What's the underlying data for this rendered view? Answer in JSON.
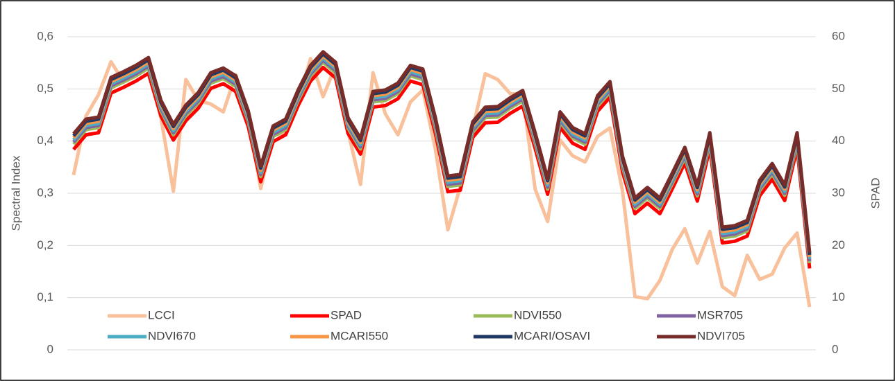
{
  "chart_data": {
    "type": "line",
    "y_label": "Spectral Index",
    "y2_label": "SPAD",
    "categories": [
      null,
      null,
      null,
      null,
      null,
      null,
      null,
      null,
      null,
      null,
      null,
      null,
      null,
      null,
      null,
      null,
      null,
      null,
      null,
      null,
      null,
      null,
      null,
      null,
      null,
      null,
      null,
      null,
      null,
      null,
      null,
      null,
      null,
      null,
      null,
      null,
      null,
      null,
      null,
      null,
      null,
      null,
      null,
      null,
      null,
      null,
      null,
      null,
      null,
      null,
      null,
      null,
      null,
      null,
      null,
      null,
      null,
      null,
      null,
      null
    ],
    "ylim": [
      0,
      0.6
    ],
    "yticks": [
      {
        "value": 0,
        "label": "0"
      },
      {
        "value": 0.1,
        "label": "0,1"
      },
      {
        "value": 0.2,
        "label": "0,2"
      },
      {
        "value": 0.3,
        "label": "0,3"
      },
      {
        "value": 0.4,
        "label": "0,4"
      },
      {
        "value": 0.5,
        "label": "0,5"
      },
      {
        "value": 0.6,
        "label": "0,6"
      }
    ],
    "y2lim": [
      0,
      60
    ],
    "y2ticks": [
      0,
      10,
      20,
      30,
      40,
      50,
      60
    ],
    "grid": true,
    "legend": "bottom",
    "series": [
      {
        "name": "LCCI",
        "color": "#f8c09b",
        "values": [
          0.335,
          0.448,
          0.489,
          0.552,
          0.514,
          0.531,
          0.543,
          0.445,
          0.304,
          0.518,
          0.478,
          0.471,
          0.456,
          0.527,
          0.445,
          0.309,
          0.412,
          0.414,
          0.474,
          0.558,
          0.485,
          0.544,
          0.418,
          0.317,
          0.531,
          0.452,
          0.412,
          0.475,
          0.498,
          0.385,
          0.23,
          0.312,
          0.424,
          0.529,
          0.518,
          0.491,
          0.489,
          0.308,
          0.246,
          0.402,
          0.372,
          0.36,
          0.409,
          0.425,
          0.305,
          0.102,
          0.098,
          0.133,
          0.193,
          0.232,
          0.166,
          0.227,
          0.121,
          0.104,
          0.181,
          0.135,
          0.145,
          0.195,
          0.224,
          0.082
        ]
      },
      {
        "name": "SPAD",
        "color": "#ff0000",
        "axis": "y2",
        "values": [
          38.4,
          41.2,
          41.6,
          49.2,
          50.3,
          51.5,
          53.0,
          44.8,
          40.2,
          43.9,
          46.3,
          50.1,
          51.0,
          49.5,
          42.8,
          32.2,
          39.9,
          41.2,
          46.8,
          51.5,
          54.1,
          52.1,
          41.5,
          37.5,
          46.5,
          46.8,
          48.1,
          51.5,
          50.8,
          41.5,
          30.3,
          30.6,
          40.7,
          43.5,
          43.6,
          45.3,
          46.7,
          38.6,
          29.8,
          42.6,
          39.6,
          38.4,
          45.7,
          48.4,
          34.1,
          26.1,
          28.1,
          26.1,
          30.9,
          35.8,
          28.5,
          38.6,
          20.5,
          20.8,
          21.8,
          29.5,
          32.7,
          28.6,
          38.6,
          15.6
        ]
      },
      {
        "name": "NDVI550",
        "color": "#9bbb59",
        "values": [
          0.394,
          0.422,
          0.426,
          0.502,
          0.513,
          0.525,
          0.54,
          0.458,
          0.412,
          0.449,
          0.473,
          0.511,
          0.52,
          0.505,
          0.438,
          0.332,
          0.409,
          0.422,
          0.478,
          0.525,
          0.551,
          0.531,
          0.425,
          0.385,
          0.475,
          0.478,
          0.491,
          0.525,
          0.518,
          0.425,
          0.313,
          0.316,
          0.417,
          0.445,
          0.446,
          0.463,
          0.477,
          0.396,
          0.308,
          0.436,
          0.406,
          0.394,
          0.467,
          0.494,
          0.351,
          0.271,
          0.291,
          0.271,
          0.319,
          0.368,
          0.295,
          0.396,
          0.215,
          0.218,
          0.228,
          0.305,
          0.337,
          0.296,
          0.396,
          0.166
        ]
      },
      {
        "name": "MSR705",
        "color": "#8064a2",
        "values": [
          0.398,
          0.426,
          0.43,
          0.506,
          0.517,
          0.529,
          0.544,
          0.462,
          0.416,
          0.453,
          0.477,
          0.515,
          0.524,
          0.509,
          0.442,
          0.336,
          0.413,
          0.426,
          0.482,
          0.529,
          0.555,
          0.535,
          0.429,
          0.389,
          0.479,
          0.482,
          0.495,
          0.529,
          0.522,
          0.429,
          0.317,
          0.32,
          0.421,
          0.449,
          0.45,
          0.467,
          0.481,
          0.4,
          0.312,
          0.44,
          0.41,
          0.398,
          0.471,
          0.498,
          0.355,
          0.275,
          0.295,
          0.275,
          0.323,
          0.372,
          0.299,
          0.4,
          0.219,
          0.222,
          0.232,
          0.309,
          0.341,
          0.3,
          0.4,
          0.17
        ]
      },
      {
        "name": "NDVI670",
        "color": "#4bacc6",
        "values": [
          0.402,
          0.43,
          0.434,
          0.51,
          0.521,
          0.533,
          0.548,
          0.466,
          0.42,
          0.457,
          0.481,
          0.519,
          0.528,
          0.513,
          0.446,
          0.34,
          0.417,
          0.43,
          0.486,
          0.533,
          0.559,
          0.539,
          0.433,
          0.393,
          0.483,
          0.486,
          0.499,
          0.533,
          0.526,
          0.433,
          0.321,
          0.324,
          0.425,
          0.453,
          0.454,
          0.471,
          0.485,
          0.404,
          0.316,
          0.444,
          0.414,
          0.402,
          0.475,
          0.502,
          0.359,
          0.279,
          0.299,
          0.279,
          0.327,
          0.376,
          0.303,
          0.404,
          0.223,
          0.226,
          0.236,
          0.313,
          0.345,
          0.304,
          0.404,
          0.174
        ]
      },
      {
        "name": "MCARI550",
        "color": "#f79646",
        "values": [
          0.406,
          0.434,
          0.438,
          0.514,
          0.525,
          0.537,
          0.552,
          0.47,
          0.424,
          0.461,
          0.485,
          0.523,
          0.532,
          0.517,
          0.45,
          0.344,
          0.421,
          0.434,
          0.49,
          0.537,
          0.563,
          0.543,
          0.437,
          0.397,
          0.487,
          0.49,
          0.503,
          0.537,
          0.53,
          0.437,
          0.325,
          0.328,
          0.429,
          0.457,
          0.458,
          0.475,
          0.489,
          0.408,
          0.32,
          0.448,
          0.418,
          0.406,
          0.479,
          0.506,
          0.363,
          0.283,
          0.303,
          0.283,
          0.331,
          0.38,
          0.307,
          0.408,
          0.227,
          0.23,
          0.24,
          0.317,
          0.349,
          0.308,
          0.408,
          0.178
        ]
      },
      {
        "name": "MCARI/OSAVI",
        "color": "#1f3864",
        "values": [
          0.41,
          0.438,
          0.442,
          0.518,
          0.529,
          0.541,
          0.556,
          0.474,
          0.428,
          0.465,
          0.489,
          0.527,
          0.536,
          0.521,
          0.454,
          0.348,
          0.425,
          0.438,
          0.494,
          0.541,
          0.567,
          0.547,
          0.441,
          0.401,
          0.491,
          0.494,
          0.507,
          0.541,
          0.534,
          0.441,
          0.329,
          0.332,
          0.433,
          0.461,
          0.462,
          0.479,
          0.493,
          0.412,
          0.324,
          0.452,
          0.422,
          0.41,
          0.483,
          0.51,
          0.367,
          0.287,
          0.307,
          0.287,
          0.335,
          0.384,
          0.311,
          0.412,
          0.231,
          0.234,
          0.244,
          0.321,
          0.353,
          0.312,
          0.412,
          0.182
        ]
      },
      {
        "name": "NDVI705",
        "color": "#772c2a",
        "values": [
          0.414,
          0.442,
          0.446,
          0.522,
          0.533,
          0.545,
          0.56,
          0.478,
          0.432,
          0.469,
          0.493,
          0.531,
          0.54,
          0.525,
          0.458,
          0.352,
          0.429,
          0.442,
          0.498,
          0.545,
          0.571,
          0.551,
          0.445,
          0.405,
          0.495,
          0.498,
          0.511,
          0.545,
          0.538,
          0.445,
          0.333,
          0.336,
          0.437,
          0.465,
          0.466,
          0.483,
          0.497,
          0.416,
          0.328,
          0.456,
          0.426,
          0.414,
          0.487,
          0.514,
          0.371,
          0.291,
          0.311,
          0.291,
          0.339,
          0.388,
          0.315,
          0.416,
          0.235,
          0.238,
          0.248,
          0.325,
          0.357,
          0.316,
          0.416,
          0.186
        ]
      }
    ]
  }
}
